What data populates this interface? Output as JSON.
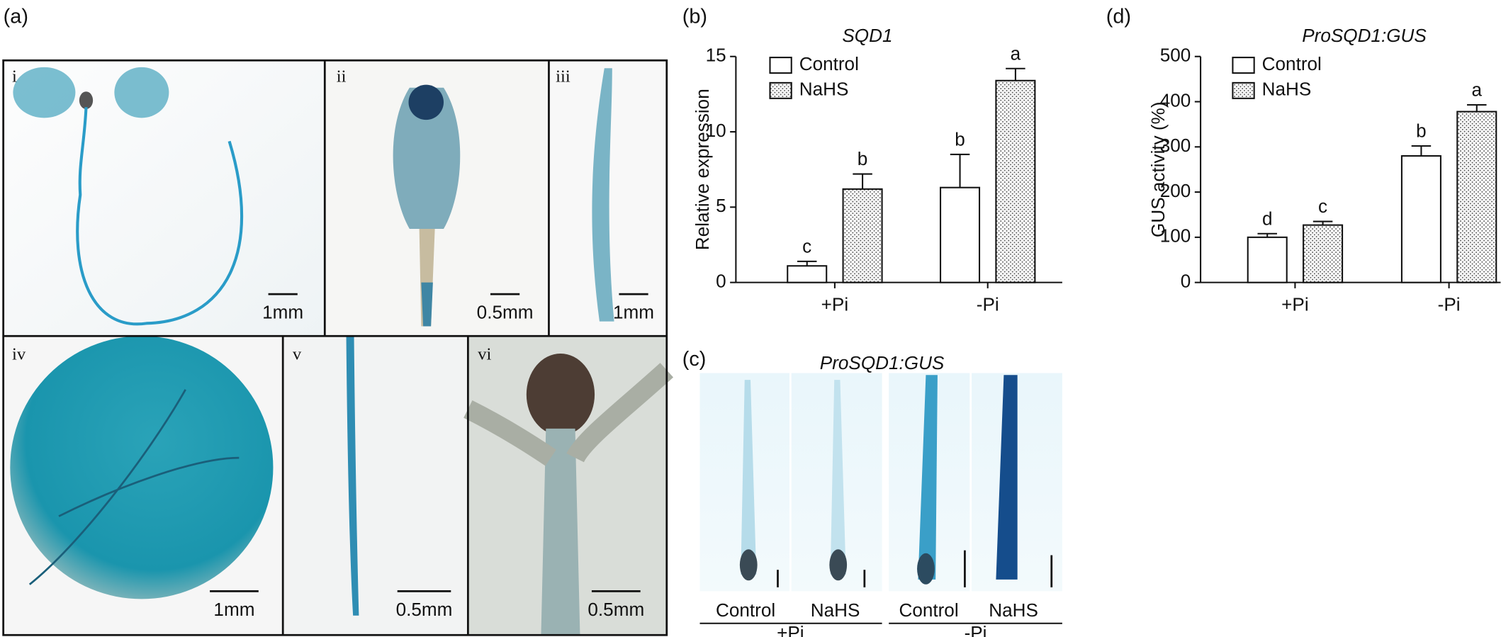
{
  "panel_labels": [
    "(a)",
    "(b)",
    "(c)",
    "(d)"
  ],
  "photos": [
    {
      "label": "i",
      "scale": "1mm"
    },
    {
      "label": "ii",
      "scale": "0.5mm"
    },
    {
      "label": "iii",
      "scale": "1mm"
    },
    {
      "label": "iv",
      "scale": "1mm"
    },
    {
      "label": "v",
      "scale": "0.5mm"
    },
    {
      "label": "vi",
      "scale": "0.5mm"
    }
  ],
  "panel_c": {
    "title": "ProSQD1:GUS",
    "images": [
      "Control",
      "NaHS",
      "Control",
      "NaHS"
    ],
    "groups": [
      "+Pi",
      "-Pi"
    ]
  },
  "chart_data": [
    {
      "type": "bar",
      "title": "SQD1",
      "ylabel": "Relative expression",
      "categories": [
        "+Pi",
        "-Pi"
      ],
      "series": [
        {
          "name": "Control",
          "color": "#ffffff",
          "values": [
            1.1,
            6.3
          ],
          "errors": [
            0.3,
            2.2
          ],
          "significance": [
            "c",
            "b"
          ]
        },
        {
          "name": "NaHS",
          "color": "#ffffff",
          "pattern": "dots",
          "values": [
            6.2,
            13.4
          ],
          "errors": [
            1.0,
            0.8
          ],
          "significance": [
            "b",
            "a"
          ]
        }
      ],
      "ylim": [
        0,
        15
      ],
      "yticks": [
        0,
        5,
        10,
        15
      ],
      "grid": false,
      "legend": "upper left"
    },
    {
      "type": "bar",
      "title": "ProSQD1:GUS",
      "ylabel": "GUS activity (%)",
      "categories": [
        "+Pi",
        "-Pi"
      ],
      "series": [
        {
          "name": "Control",
          "color": "#ffffff",
          "values": [
            100,
            280
          ],
          "errors": [
            8,
            22
          ],
          "significance": [
            "d",
            "b"
          ]
        },
        {
          "name": "NaHS",
          "color": "#ffffff",
          "pattern": "dots",
          "values": [
            127,
            378
          ],
          "errors": [
            8,
            15
          ],
          "significance": [
            "c",
            "a"
          ]
        }
      ],
      "ylim": [
        0,
        500
      ],
      "yticks": [
        0,
        100,
        200,
        300,
        400,
        500
      ],
      "grid": false,
      "legend": "upper left"
    }
  ]
}
